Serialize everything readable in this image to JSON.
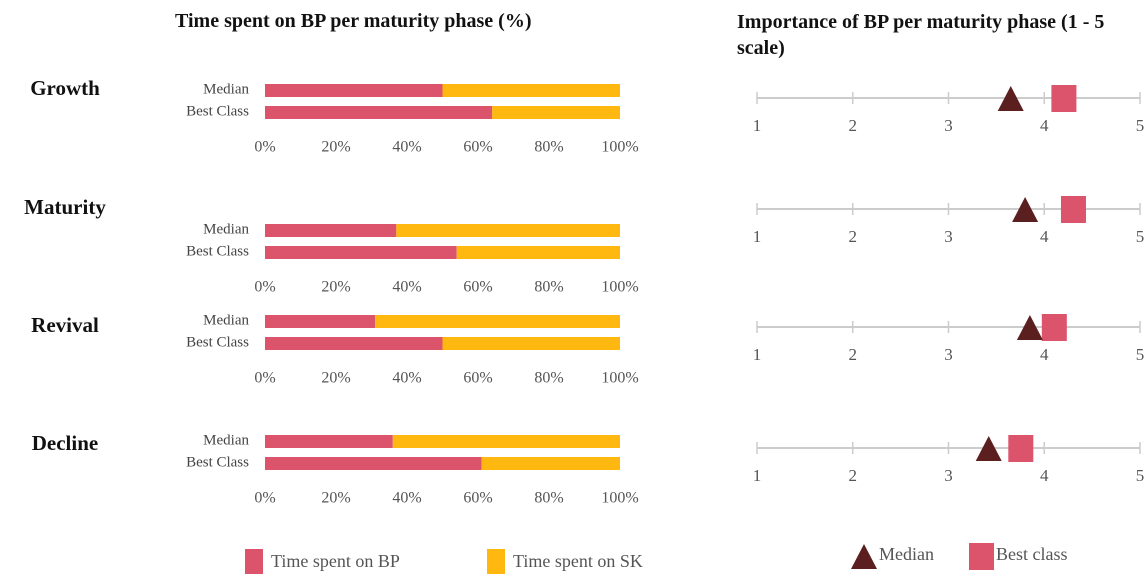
{
  "chart_data": [
    {
      "type": "stacked_bar",
      "title": "Time spent on BP per maturity phase (%)",
      "groups": [
        "Growth",
        "Maturity",
        "Revival",
        "Decline"
      ],
      "categories": [
        "Median",
        "Best Class",
        "Median",
        "Best Class",
        "Median",
        "Best Class",
        "Median",
        "Best Class"
      ],
      "series": [
        {
          "name": "Time spent on BP",
          "color": "#dc546c",
          "values": [
            50,
            64,
            37,
            54,
            31,
            50,
            36,
            61
          ]
        },
        {
          "name": "Time spent on SK",
          "color": "#ffb80f",
          "values": [
            50,
            36,
            63,
            46,
            69,
            50,
            64,
            39
          ]
        }
      ],
      "xlim": [
        0,
        100
      ],
      "xticks": [
        {
          "value": 0,
          "label": "0%"
        },
        {
          "value": 20,
          "label": "20%"
        },
        {
          "value": 40,
          "label": "40%"
        },
        {
          "value": 60,
          "label": "60%"
        },
        {
          "value": 80,
          "label": "80%"
        },
        {
          "value": 100,
          "label": "100%"
        }
      ]
    },
    {
      "type": "dot",
      "title": "Importance of BP per maturity phase (1 - 5 scale)",
      "series": [
        {
          "name": "Median",
          "color": "#5c1f1f",
          "marker": "triangle",
          "values": [
            3.65,
            3.8,
            3.85,
            3.42
          ]
        },
        {
          "name": "Best class",
          "color": "#dc546c",
          "marker": "square",
          "values": [
            4.2,
            4.3,
            4.1,
            3.75
          ]
        }
      ],
      "xlim": [
        1,
        5
      ],
      "xticks": [
        1,
        2,
        3,
        4,
        5
      ]
    }
  ]
}
